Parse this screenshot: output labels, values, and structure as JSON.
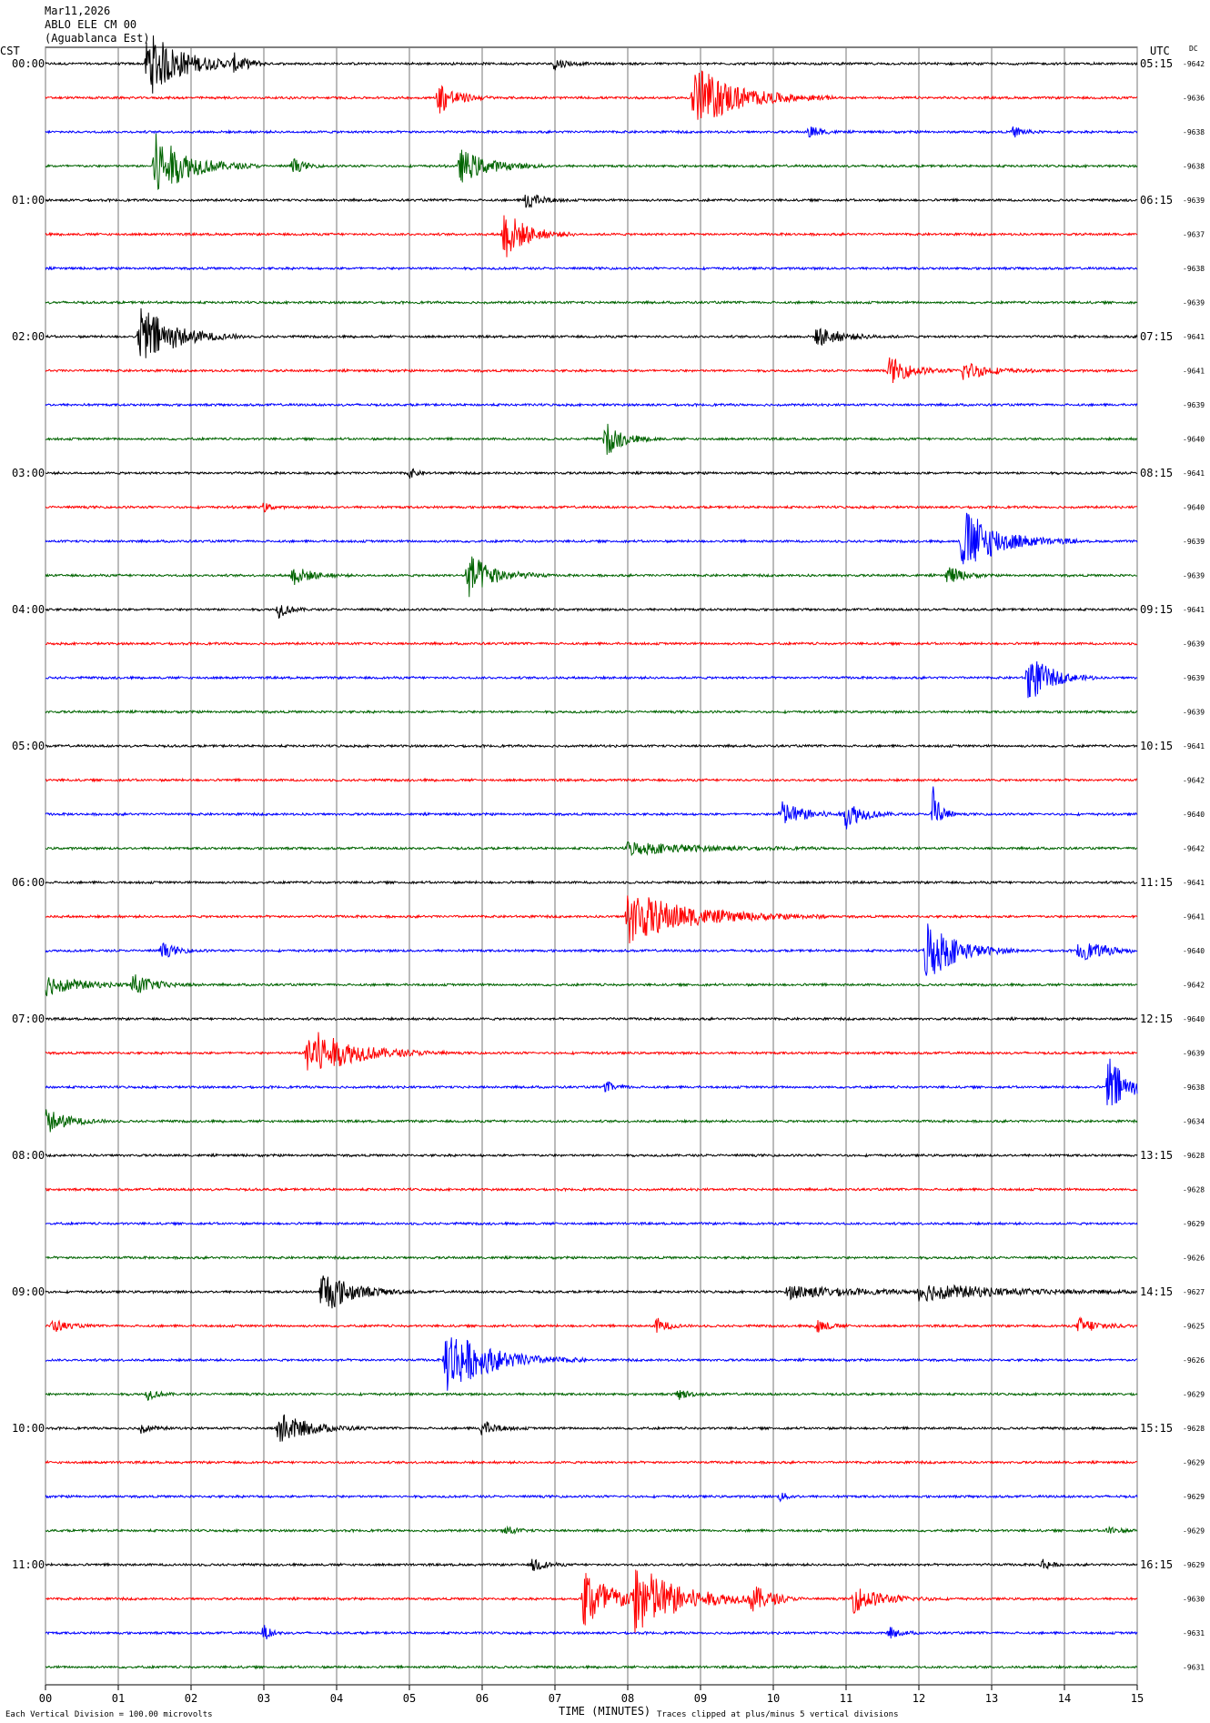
{
  "header": {
    "date": "Mar11,2026",
    "station": "ABLO ELE CM 00",
    "location": "(Aguablanca Est)",
    "left_tz": "CST",
    "right_tz": "UTC",
    "dc_label": "DC"
  },
  "footer": {
    "scale_note": "Each Vertical Division =  100.00 microvolts",
    "xlabel": "TIME (MINUTES)",
    "clip_note": "Traces clipped at plus/minus 5 vertical divisions"
  },
  "chart_data": {
    "type": "line",
    "title": "Mar11,2026 ABLO ELE CM 00 (Aguablanca Est)",
    "xlabel": "TIME (MINUTES)",
    "xlim": [
      0,
      15
    ],
    "x_ticks": [
      "00",
      "01",
      "02",
      "03",
      "04",
      "05",
      "06",
      "07",
      "08",
      "09",
      "10",
      "11",
      "12",
      "13",
      "14",
      "15"
    ],
    "trace_colors": [
      "#000000",
      "#ff0000",
      "#0000ff",
      "#006400"
    ],
    "grid": "vertical lines each minute",
    "traces_per_hour": 4,
    "trace_count": 48,
    "left_hour_labels": [
      "00:00",
      "01:00",
      "02:00",
      "03:00",
      "04:00",
      "05:00",
      "06:00",
      "07:00",
      "08:00",
      "09:00",
      "10:00",
      "11:00"
    ],
    "right_hour_labels": [
      "05:15",
      "06:15",
      "07:15",
      "08:15",
      "09:15",
      "10:15",
      "11:15",
      "12:15",
      "13:15",
      "14:15",
      "15:15",
      "16:15"
    ],
    "dc_offsets": [
      "-9642",
      "-9636",
      "-9638",
      "-9638",
      "-9639",
      "-9637",
      "-9638",
      "-9639",
      "-9641",
      "-9641",
      "-9639",
      "-9640",
      "-9641",
      "-9640",
      "-9639",
      "-9639",
      "-9641",
      "-9639",
      "-9639",
      "-9639",
      "-9641",
      "-9642",
      "-9640",
      "-9642",
      "-9641",
      "-9641",
      "-9640",
      "-9642",
      "-9640",
      "-9639",
      "-9638",
      "-9634",
      "-9628",
      "-9628",
      "-9629",
      "-9626",
      "-9627",
      "-9625",
      "-9626",
      "-9629",
      "-9628",
      "-9629",
      "-9629",
      "-9629",
      "-9629",
      "-9630",
      "-9631",
      "-9631"
    ],
    "events": [
      {
        "trace": 0,
        "minute": 1.4,
        "amplitude": 5,
        "duration": 1.0
      },
      {
        "trace": 0,
        "minute": 2.6,
        "amplitude": 1.2,
        "duration": 0.3
      },
      {
        "trace": 0,
        "minute": 7.0,
        "amplitude": 1.0,
        "duration": 0.3
      },
      {
        "trace": 1,
        "minute": 5.4,
        "amplitude": 2.5,
        "duration": 0.5
      },
      {
        "trace": 1,
        "minute": 8.9,
        "amplitude": 5,
        "duration": 1.2
      },
      {
        "trace": 2,
        "minute": 10.5,
        "amplitude": 1.0,
        "duration": 0.3
      },
      {
        "trace": 2,
        "minute": 13.3,
        "amplitude": 0.8,
        "duration": 0.3
      },
      {
        "trace": 3,
        "minute": 1.5,
        "amplitude": 5,
        "duration": 0.9
      },
      {
        "trace": 3,
        "minute": 5.7,
        "amplitude": 2.5,
        "duration": 0.8
      },
      {
        "trace": 3,
        "minute": 3.4,
        "amplitude": 1.2,
        "duration": 0.3
      },
      {
        "trace": 4,
        "minute": 6.6,
        "amplitude": 1.5,
        "duration": 0.4
      },
      {
        "trace": 5,
        "minute": 6.3,
        "amplitude": 4,
        "duration": 0.6
      },
      {
        "trace": 8,
        "minute": 1.3,
        "amplitude": 5,
        "duration": 0.9
      },
      {
        "trace": 8,
        "minute": 10.6,
        "amplitude": 1.5,
        "duration": 0.7
      },
      {
        "trace": 9,
        "minute": 11.6,
        "amplitude": 2.0,
        "duration": 0.6
      },
      {
        "trace": 9,
        "minute": 12.6,
        "amplitude": 1.5,
        "duration": 0.7
      },
      {
        "trace": 11,
        "minute": 7.7,
        "amplitude": 2.5,
        "duration": 0.5
      },
      {
        "trace": 12,
        "minute": 5.0,
        "amplitude": 0.8,
        "duration": 0.2
      },
      {
        "trace": 13,
        "minute": 3.0,
        "amplitude": 0.7,
        "duration": 0.2
      },
      {
        "trace": 14,
        "minute": 12.6,
        "amplitude": 5,
        "duration": 1.0
      },
      {
        "trace": 15,
        "minute": 3.4,
        "amplitude": 1.5,
        "duration": 0.5
      },
      {
        "trace": 15,
        "minute": 5.8,
        "amplitude": 3.5,
        "duration": 0.7
      },
      {
        "trace": 15,
        "minute": 12.4,
        "amplitude": 1.5,
        "duration": 0.4
      },
      {
        "trace": 16,
        "minute": 3.2,
        "amplitude": 1.2,
        "duration": 0.3
      },
      {
        "trace": 18,
        "minute": 13.5,
        "amplitude": 4,
        "duration": 0.6
      },
      {
        "trace": 22,
        "minute": 10.1,
        "amplitude": 2.0,
        "duration": 0.7
      },
      {
        "trace": 22,
        "minute": 11.0,
        "amplitude": 2.0,
        "duration": 0.5
      },
      {
        "trace": 22,
        "minute": 12.2,
        "amplitude": 5,
        "duration": 0.2
      },
      {
        "trace": 23,
        "minute": 8.0,
        "amplitude": 1.0,
        "duration": 1.8
      },
      {
        "trace": 25,
        "minute": 8.0,
        "amplitude": 4,
        "duration": 1.7
      },
      {
        "trace": 26,
        "minute": 12.1,
        "amplitude": 5,
        "duration": 0.8
      },
      {
        "trace": 26,
        "minute": 1.6,
        "amplitude": 1.2,
        "duration": 0.4
      },
      {
        "trace": 26,
        "minute": 14.2,
        "amplitude": 1.5,
        "duration": 0.8
      },
      {
        "trace": 27,
        "minute": 0.0,
        "amplitude": 1.5,
        "duration": 1.0
      },
      {
        "trace": 27,
        "minute": 1.2,
        "amplitude": 1.5,
        "duration": 0.6
      },
      {
        "trace": 29,
        "minute": 3.6,
        "amplitude": 4,
        "duration": 1.2
      },
      {
        "trace": 30,
        "minute": 14.6,
        "amplitude": 5,
        "duration": 0.5
      },
      {
        "trace": 30,
        "minute": 7.7,
        "amplitude": 0.8,
        "duration": 0.3
      },
      {
        "trace": 31,
        "minute": 0.0,
        "amplitude": 2.0,
        "duration": 0.6
      },
      {
        "trace": 36,
        "minute": 3.8,
        "amplitude": 3.5,
        "duration": 0.8
      },
      {
        "trace": 36,
        "minute": 10.2,
        "amplitude": 1.0,
        "duration": 1.8
      },
      {
        "trace": 36,
        "minute": 12.0,
        "amplitude": 1.2,
        "duration": 2.4
      },
      {
        "trace": 37,
        "minute": 0.1,
        "amplitude": 1.0,
        "duration": 0.4
      },
      {
        "trace": 37,
        "minute": 8.4,
        "amplitude": 1.2,
        "duration": 0.3
      },
      {
        "trace": 37,
        "minute": 10.6,
        "amplitude": 1.2,
        "duration": 0.3
      },
      {
        "trace": 37,
        "minute": 14.2,
        "amplitude": 1.2,
        "duration": 0.6
      },
      {
        "trace": 38,
        "minute": 5.5,
        "amplitude": 5,
        "duration": 1.2
      },
      {
        "trace": 39,
        "minute": 1.4,
        "amplitude": 0.8,
        "duration": 0.3
      },
      {
        "trace": 39,
        "minute": 8.7,
        "amplitude": 0.8,
        "duration": 0.3
      },
      {
        "trace": 40,
        "minute": 3.2,
        "amplitude": 2.5,
        "duration": 0.8
      },
      {
        "trace": 40,
        "minute": 6.0,
        "amplitude": 1.2,
        "duration": 0.4
      },
      {
        "trace": 40,
        "minute": 1.3,
        "amplitude": 0.8,
        "duration": 0.3
      },
      {
        "trace": 42,
        "minute": 10.1,
        "amplitude": 0.7,
        "duration": 0.2
      },
      {
        "trace": 43,
        "minute": 6.3,
        "amplitude": 0.8,
        "duration": 0.3
      },
      {
        "trace": 43,
        "minute": 14.6,
        "amplitude": 0.7,
        "duration": 0.3
      },
      {
        "trace": 44,
        "minute": 6.7,
        "amplitude": 1.2,
        "duration": 0.3
      },
      {
        "trace": 44,
        "minute": 13.7,
        "amplitude": 1.0,
        "duration": 0.2
      },
      {
        "trace": 45,
        "minute": 7.4,
        "amplitude": 5,
        "duration": 0.8
      },
      {
        "trace": 45,
        "minute": 8.1,
        "amplitude": 5,
        "duration": 1.3
      },
      {
        "trace": 45,
        "minute": 9.7,
        "amplitude": 2.0,
        "duration": 0.5
      },
      {
        "trace": 45,
        "minute": 11.1,
        "amplitude": 2.0,
        "duration": 0.8
      },
      {
        "trace": 46,
        "minute": 3.0,
        "amplitude": 1.2,
        "duration": 0.2
      },
      {
        "trace": 46,
        "minute": 11.6,
        "amplitude": 0.8,
        "duration": 0.3
      }
    ]
  }
}
